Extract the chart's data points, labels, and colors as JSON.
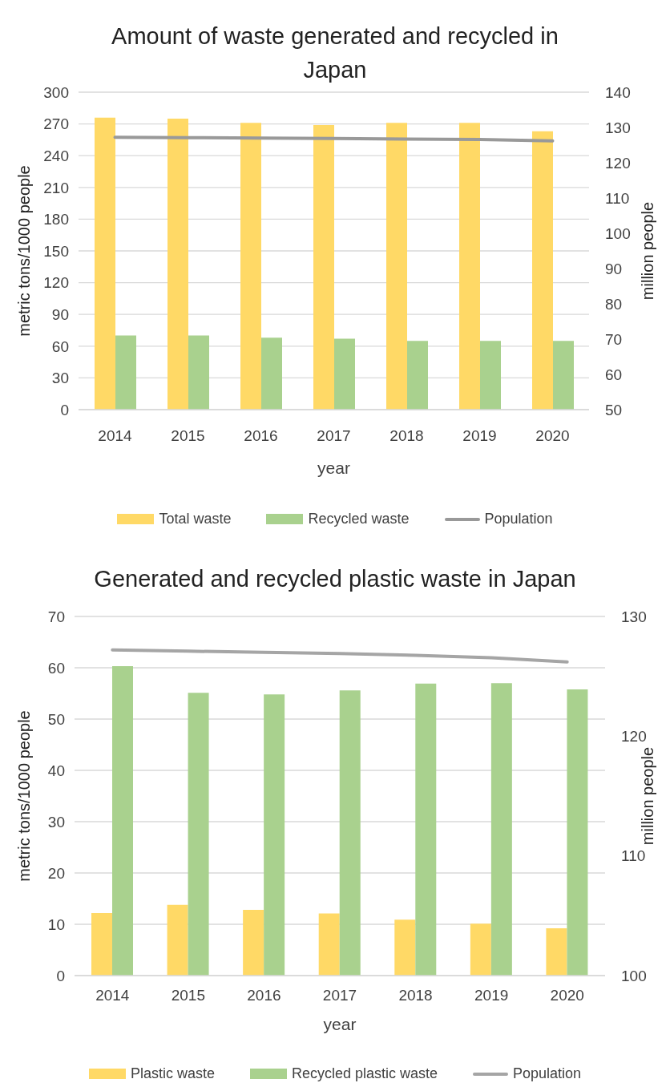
{
  "chart_data": [
    {
      "type": "bar",
      "title": "Amount of waste generated and recycled in Japan",
      "xlabel": "year",
      "ylabel": "metric tons/1000 people",
      "y2label": "million people",
      "categories": [
        "2014",
        "2015",
        "2016",
        "2017",
        "2018",
        "2019",
        "2020"
      ],
      "series": [
        {
          "name": "Total waste",
          "color": "#ffd966",
          "values": [
            276,
            275,
            271,
            269,
            271,
            271,
            263
          ]
        },
        {
          "name": "Recycled waste",
          "color": "#a9d18e",
          "values": [
            70,
            70,
            68,
            67,
            65,
            65,
            65
          ]
        },
        {
          "name": "Population",
          "type": "line",
          "axis": "y2",
          "color": "#999999",
          "values": [
            127.2,
            127.1,
            127.0,
            126.9,
            126.7,
            126.6,
            126.2
          ]
        }
      ],
      "ylim": [
        0,
        300
      ],
      "yticks": [
        0,
        30,
        60,
        90,
        120,
        150,
        180,
        210,
        240,
        270,
        300
      ],
      "y2lim": [
        50,
        140
      ],
      "y2ticks": [
        50,
        60,
        70,
        80,
        90,
        100,
        110,
        120,
        130,
        140
      ],
      "grid": "y",
      "legend": "bottom"
    },
    {
      "type": "bar",
      "title": "Generated and recycled plastic waste in Japan",
      "xlabel": "year",
      "ylabel": "metric tons/1000 people",
      "y2label": "million people",
      "categories": [
        "2014",
        "2015",
        "2016",
        "2017",
        "2018",
        "2019",
        "2020"
      ],
      "series": [
        {
          "name": "Plastic waste",
          "color": "#ffd966",
          "values": [
            12.2,
            13.8,
            12.8,
            12.1,
            10.9,
            10.1,
            9.2
          ]
        },
        {
          "name": "Recycled plastic waste",
          "color": "#a9d18e",
          "values": [
            60.3,
            55.1,
            54.8,
            55.6,
            56.9,
            57.0,
            55.8
          ]
        },
        {
          "name": "Population",
          "type": "line",
          "axis": "y2",
          "color": "#a5a5a5",
          "values": [
            127.2,
            127.1,
            127.0,
            126.9,
            126.75,
            126.55,
            126.2
          ]
        }
      ],
      "ylim": [
        0,
        70
      ],
      "yticks": [
        0,
        10,
        20,
        30,
        40,
        50,
        60,
        70
      ],
      "y2lim": [
        100,
        130
      ],
      "y2ticks": [
        100,
        110,
        120,
        130
      ],
      "grid": "y",
      "legend": "bottom"
    }
  ]
}
